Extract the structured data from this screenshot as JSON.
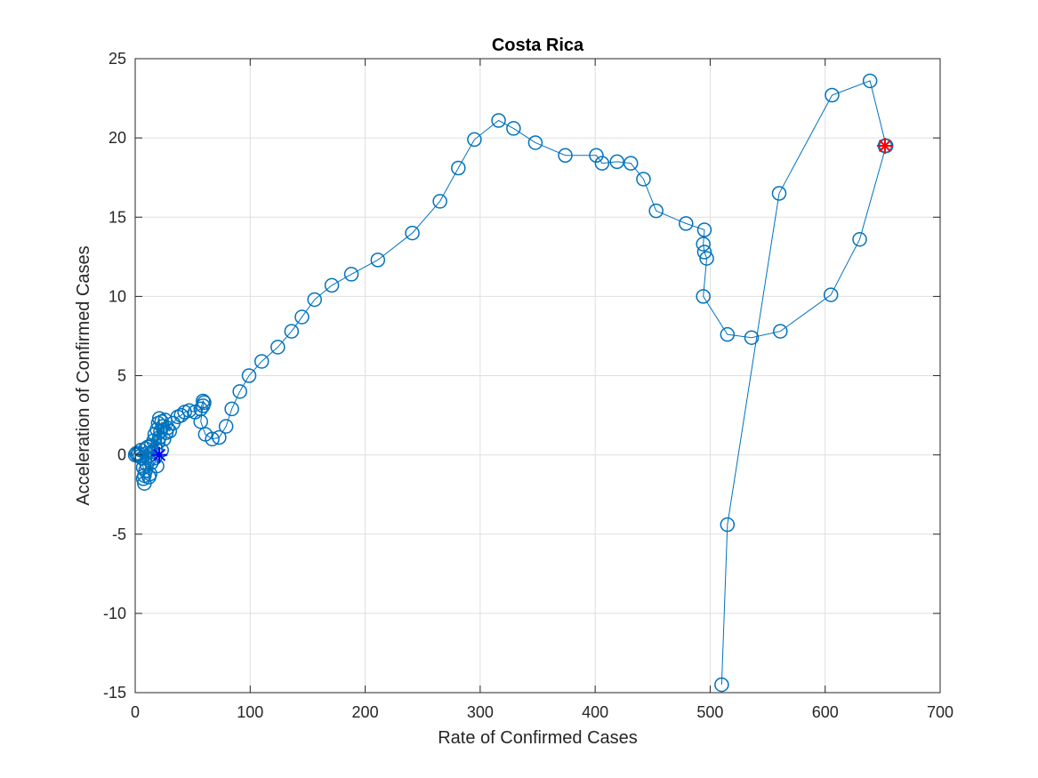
{
  "chart_data": {
    "type": "scatter",
    "title": "Costa Rica",
    "xlabel": "Rate of Confirmed Cases",
    "ylabel": "Acceleration of Confirmed Cases",
    "xlim": [
      0,
      700
    ],
    "ylim": [
      -15,
      25
    ],
    "xticks": [
      0,
      100,
      200,
      300,
      400,
      500,
      600,
      700
    ],
    "yticks": [
      -15,
      -10,
      -5,
      0,
      5,
      10,
      15,
      20,
      25
    ],
    "grid": true,
    "legend": "none",
    "colors": {
      "series": "#0072BD",
      "start_marker": "#0000FF",
      "end_marker": "#FF0000"
    },
    "series": [
      {
        "marker": "circle-line",
        "points": [
          [
            0,
            0
          ],
          [
            1,
            0.1
          ],
          [
            2,
            0
          ],
          [
            3,
            0.1
          ],
          [
            4,
            -0.1
          ],
          [
            5,
            0.3
          ],
          [
            6,
            -0.2
          ],
          [
            7,
            -0.8
          ],
          [
            7,
            -1.5
          ],
          [
            8,
            -1.8
          ],
          [
            8,
            -1.3
          ],
          [
            9,
            -1.0
          ],
          [
            9,
            0.4
          ],
          [
            10,
            -0.6
          ],
          [
            10,
            0.1
          ],
          [
            11,
            0.5
          ],
          [
            12,
            -0.3
          ],
          [
            12,
            -1.4
          ],
          [
            13,
            -1.2
          ],
          [
            14,
            0.6
          ],
          [
            14,
            -0.5
          ],
          [
            15,
            0.2
          ],
          [
            16,
            0.9
          ],
          [
            17,
            -0.2
          ],
          [
            17,
            1.3
          ],
          [
            18,
            0.4
          ],
          [
            19,
            1.6
          ],
          [
            19,
            -0.7
          ],
          [
            20,
            2.0
          ],
          [
            20,
            0.8
          ],
          [
            21,
            2.3
          ],
          [
            21,
            1.1
          ],
          [
            22,
            1.5
          ],
          [
            23,
            0.3
          ],
          [
            23,
            2.1
          ],
          [
            24,
            1.8
          ],
          [
            25,
            1.0
          ],
          [
            26,
            2.2
          ],
          [
            27,
            1.4
          ],
          [
            28,
            1.7
          ],
          [
            30,
            1.5
          ],
          [
            33,
            2.0
          ],
          [
            37,
            2.4
          ],
          [
            40,
            2.5
          ],
          [
            43,
            2.7
          ],
          [
            47,
            2.8
          ],
          [
            52,
            2.7
          ],
          [
            57,
            2.9
          ],
          [
            59,
            3.4
          ],
          [
            60,
            3.3
          ],
          [
            59,
            3.1
          ],
          [
            57,
            2.1
          ],
          [
            61,
            1.3
          ],
          [
            67,
            1.0
          ],
          [
            73,
            1.1
          ],
          [
            79,
            1.8
          ],
          [
            84,
            2.9
          ],
          [
            91,
            4.0
          ],
          [
            99,
            5.0
          ],
          [
            110,
            5.9
          ],
          [
            124,
            6.8
          ],
          [
            136,
            7.8
          ],
          [
            145,
            8.7
          ],
          [
            156,
            9.8
          ],
          [
            171,
            10.7
          ],
          [
            188,
            11.4
          ],
          [
            211,
            12.3
          ],
          [
            241,
            14.0
          ],
          [
            265,
            16.0
          ],
          [
            281,
            18.1
          ],
          [
            295,
            19.9
          ],
          [
            316,
            21.1
          ],
          [
            329,
            20.6
          ],
          [
            348,
            19.7
          ],
          [
            374,
            18.9
          ],
          [
            401,
            18.9
          ],
          [
            406,
            18.4
          ],
          [
            419,
            18.5
          ],
          [
            431,
            18.4
          ],
          [
            442,
            17.4
          ],
          [
            453,
            15.4
          ],
          [
            479,
            14.6
          ],
          [
            495,
            14.2
          ],
          [
            494,
            13.3
          ],
          [
            495,
            12.8
          ],
          [
            497,
            12.4
          ],
          [
            494,
            10.0
          ],
          [
            515,
            7.6
          ],
          [
            536,
            7.4
          ],
          [
            561,
            7.8
          ],
          [
            605,
            10.1
          ],
          [
            630,
            13.6
          ],
          [
            653,
            19.5
          ],
          [
            639,
            23.6
          ],
          [
            606,
            22.7
          ],
          [
            560,
            16.5
          ],
          [
            515,
            -4.4
          ],
          [
            510,
            -14.5
          ]
        ]
      }
    ],
    "start_point": {
      "x": 21,
      "y": 0,
      "marker": "asterisk"
    },
    "end_point": {
      "x": 652,
      "y": 19.5,
      "marker": "asterisk"
    }
  }
}
